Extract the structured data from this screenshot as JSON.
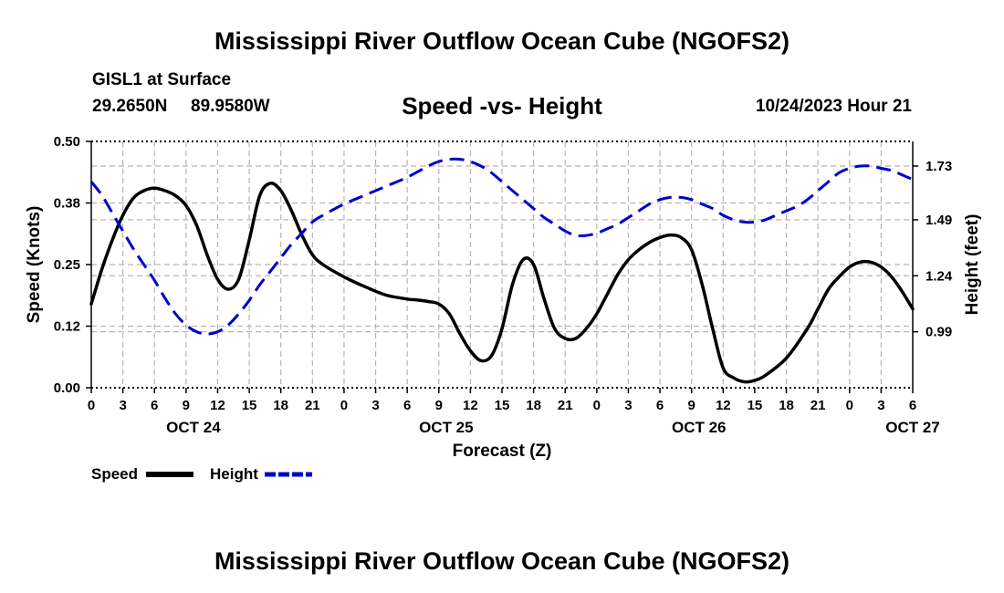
{
  "header": {
    "title": "Mississippi River Outflow Ocean Cube (NGOFS2)",
    "station": "GISL1 at Surface",
    "latitude": "29.2650N",
    "longitude": "89.9580W",
    "datetime": "10/24/2023 Hour 21"
  },
  "footer": {
    "title": "Mississippi River Outflow Ocean Cube (NGOFS2)"
  },
  "chart_data": {
    "type": "line",
    "title": "Speed -vs- Height",
    "xlabel": "Forecast (Z)",
    "ylabel": "Speed (Knots)",
    "y2label": "Height (feet)",
    "x_unit": "forecast hours",
    "xlim": [
      0,
      78
    ],
    "ylim": [
      0,
      0.5
    ],
    "y2lim": [
      0.74,
      1.84
    ],
    "x_ticks": [
      0,
      3,
      6,
      9,
      12,
      15,
      18,
      21,
      24,
      27,
      30,
      33,
      36,
      39,
      42,
      45,
      48,
      51,
      54,
      57,
      60,
      63,
      66,
      69,
      72,
      75,
      78
    ],
    "x_tick_labels": [
      "0",
      "3",
      "6",
      "9",
      "12",
      "15",
      "18",
      "21",
      "0",
      "3",
      "6",
      "9",
      "12",
      "15",
      "18",
      "21",
      "0",
      "3",
      "6",
      "9",
      "12",
      "15",
      "18",
      "21",
      "0",
      "3",
      "6"
    ],
    "date_labels": [
      {
        "label": "OCT 24",
        "x": 9.7
      },
      {
        "label": "OCT 25",
        "x": 33.7
      },
      {
        "label": "OCT 26",
        "x": 57.7
      },
      {
        "label": "OCT 27",
        "x": 78
      }
    ],
    "y_ticks": [
      0,
      0.125,
      0.25,
      0.375,
      0.5
    ],
    "y_tick_labels": [
      "0.00",
      "0.12",
      "0.25",
      "0.38",
      "0.50"
    ],
    "y2_ticks": [
      0.99,
      1.24,
      1.49,
      1.73
    ],
    "y2_tick_labels": [
      "0.99",
      "1.24",
      "1.49",
      "1.73"
    ],
    "grid": true,
    "legend": [
      {
        "name": "Speed",
        "color": "#000000",
        "style": "solid"
      },
      {
        "name": "Height",
        "color": "#0000cc",
        "style": "dashed"
      }
    ],
    "series": [
      {
        "name": "Speed",
        "axis": "left",
        "color": "#000000",
        "x": [
          0,
          1,
          2,
          3,
          4,
          5,
          6,
          7,
          8,
          9,
          10,
          11,
          12,
          13,
          14,
          15,
          16,
          17,
          18,
          19,
          20,
          21,
          22,
          24,
          26,
          28,
          30,
          31,
          32,
          33,
          34,
          35,
          36,
          37,
          38,
          39,
          40,
          41,
          42,
          43,
          44,
          45,
          46,
          47,
          48,
          49,
          50,
          51,
          52,
          53,
          54,
          55,
          56,
          57,
          58,
          59,
          60,
          61,
          62,
          63,
          64,
          66,
          68,
          69,
          70,
          71,
          72,
          73,
          74,
          75,
          76,
          77,
          78
        ],
        "y": [
          0.17,
          0.24,
          0.3,
          0.35,
          0.385,
          0.4,
          0.405,
          0.4,
          0.39,
          0.37,
          0.33,
          0.27,
          0.22,
          0.2,
          0.22,
          0.3,
          0.39,
          0.415,
          0.4,
          0.36,
          0.31,
          0.27,
          0.25,
          0.225,
          0.205,
          0.188,
          0.18,
          0.178,
          0.175,
          0.17,
          0.15,
          0.11,
          0.075,
          0.055,
          0.065,
          0.12,
          0.21,
          0.26,
          0.25,
          0.18,
          0.12,
          0.1,
          0.1,
          0.12,
          0.15,
          0.19,
          0.23,
          0.26,
          0.28,
          0.295,
          0.305,
          0.31,
          0.305,
          0.28,
          0.21,
          0.12,
          0.04,
          0.02,
          0.012,
          0.015,
          0.025,
          0.06,
          0.12,
          0.16,
          0.2,
          0.225,
          0.245,
          0.255,
          0.255,
          0.245,
          0.225,
          0.195,
          0.16
        ]
      },
      {
        "name": "Height",
        "axis": "right",
        "color": "#0000cc",
        "x": [
          0,
          1,
          2,
          3,
          4,
          5,
          6,
          7,
          8,
          9,
          10,
          11,
          12,
          13,
          14,
          15,
          16,
          17,
          18,
          19,
          20,
          21,
          22,
          24,
          26,
          28,
          30,
          32,
          33,
          34,
          35,
          36,
          37,
          38,
          39,
          40,
          41,
          42,
          43,
          44,
          45,
          46,
          47,
          48,
          49,
          50,
          51,
          52,
          53,
          54,
          55,
          56,
          57,
          58,
          59,
          60,
          61,
          62,
          63,
          64,
          65,
          66,
          67,
          68,
          69,
          70,
          71,
          72,
          73,
          74,
          75,
          76,
          77,
          78
        ],
        "y": [
          1.66,
          1.6,
          1.52,
          1.44,
          1.36,
          1.29,
          1.22,
          1.14,
          1.07,
          1.02,
          0.99,
          0.98,
          0.99,
          1.02,
          1.07,
          1.13,
          1.2,
          1.26,
          1.32,
          1.38,
          1.43,
          1.48,
          1.51,
          1.56,
          1.6,
          1.64,
          1.68,
          1.73,
          1.75,
          1.76,
          1.76,
          1.75,
          1.73,
          1.7,
          1.66,
          1.62,
          1.58,
          1.54,
          1.5,
          1.47,
          1.44,
          1.42,
          1.42,
          1.43,
          1.45,
          1.47,
          1.5,
          1.53,
          1.56,
          1.58,
          1.59,
          1.59,
          1.58,
          1.56,
          1.54,
          1.51,
          1.49,
          1.48,
          1.48,
          1.49,
          1.51,
          1.53,
          1.55,
          1.58,
          1.62,
          1.66,
          1.7,
          1.72,
          1.73,
          1.73,
          1.72,
          1.71,
          1.69,
          1.67
        ]
      }
    ]
  }
}
